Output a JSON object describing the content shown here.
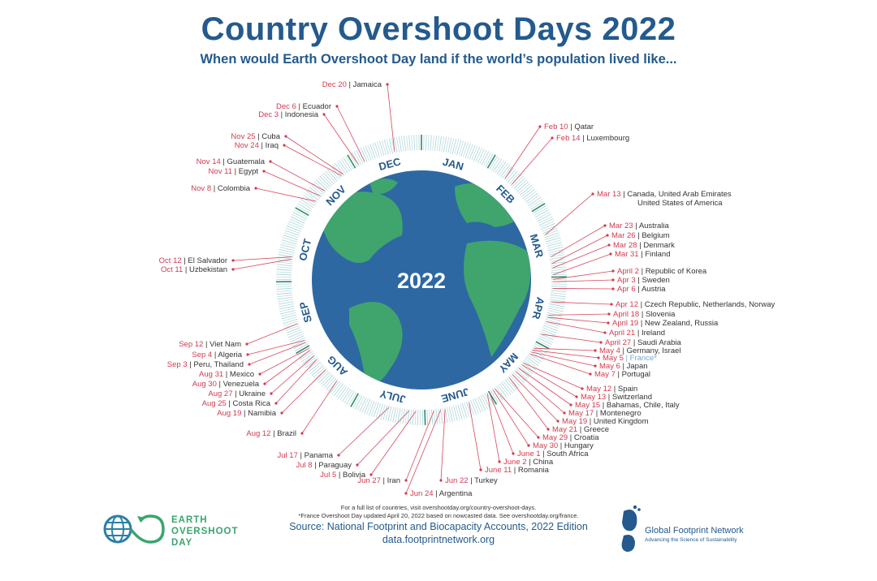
{
  "header": {
    "title": "Country Overshoot Days 2022",
    "subtitle": "When would Earth Overshoot Day land if the world’s population lived like..."
  },
  "chart_data": {
    "type": "radial-timeline",
    "title": "Country Overshoot Days 2022",
    "center_label": "2022",
    "months": [
      "JAN",
      "FEB",
      "MAR",
      "APR",
      "MAY",
      "JUNE",
      "JULY",
      "AUG",
      "SEP",
      "OCT",
      "NOV",
      "DEC"
    ],
    "separator": "|",
    "entries": [
      {
        "date": "Dec 20",
        "country": "Jamaica"
      },
      {
        "date": "Dec 6",
        "country": "Ecuador"
      },
      {
        "date": "Dec 3",
        "country": "Indonesia"
      },
      {
        "date": "Nov 25",
        "country": "Cuba"
      },
      {
        "date": "Nov 24",
        "country": "Iraq"
      },
      {
        "date": "Nov 14",
        "country": "Guatemala"
      },
      {
        "date": "Nov 11",
        "country": "Egypt"
      },
      {
        "date": "Nov 8",
        "country": "Colombia"
      },
      {
        "date": "Oct 12",
        "country": "El Salvador"
      },
      {
        "date": "Oct 11",
        "country": "Uzbekistan"
      },
      {
        "date": "Sep 12",
        "country": "Viet Nam"
      },
      {
        "date": "Sep 4",
        "country": "Algeria"
      },
      {
        "date": "Sep 3",
        "country": "Peru, Thailand"
      },
      {
        "date": "Aug 31",
        "country": "Mexico"
      },
      {
        "date": "Aug 30",
        "country": "Venezuela"
      },
      {
        "date": "Aug 27",
        "country": "Ukraine"
      },
      {
        "date": "Aug 25",
        "country": "Costa Rica"
      },
      {
        "date": "Aug 19",
        "country": "Namibia"
      },
      {
        "date": "Aug 12",
        "country": "Brazil"
      },
      {
        "date": "Jul 17",
        "country": "Panama"
      },
      {
        "date": "Jul 8",
        "country": "Paraguay"
      },
      {
        "date": "Jul 5",
        "country": "Bolivia"
      },
      {
        "date": "Jun 27",
        "country": "Iran"
      },
      {
        "date": "Jun 24",
        "country": "Argentina"
      },
      {
        "date": "Jun 22",
        "country": "Turkey"
      },
      {
        "date": "June 11",
        "country": "Romania"
      },
      {
        "date": "June 2",
        "country": "China"
      },
      {
        "date": "June 1",
        "country": "South Africa"
      },
      {
        "date": "May 30",
        "country": "Hungary"
      },
      {
        "date": "May 29",
        "country": "Croatia"
      },
      {
        "date": "May 21",
        "country": "Greece"
      },
      {
        "date": "May 19",
        "country": "United Kingdom"
      },
      {
        "date": "May 17",
        "country": "Montenegro"
      },
      {
        "date": "May 15",
        "country": "Bahamas, Chile, Italy"
      },
      {
        "date": "May 13",
        "country": "Switzerland"
      },
      {
        "date": "May 12",
        "country": "Spain"
      },
      {
        "date": "May 7",
        "country": "Portugal"
      },
      {
        "date": "May 6",
        "country": "Japan"
      },
      {
        "date": "May 5",
        "country": "France*",
        "highlight": true
      },
      {
        "date": "May 4",
        "country": "Germany, Israel"
      },
      {
        "date": "April 27",
        "country": "Saudi Arabia"
      },
      {
        "date": "April 21",
        "country": "Ireland"
      },
      {
        "date": "April 19",
        "country": "New Zealand, Russia"
      },
      {
        "date": "April 18",
        "country": "Slovenia"
      },
      {
        "date": "Apr 12",
        "country": "Czech Republic, Netherlands, Norway"
      },
      {
        "date": "Apr 6",
        "country": "Austria"
      },
      {
        "date": "Apr 3",
        "country": "Sweden"
      },
      {
        "date": "April 2",
        "country": "Republic of Korea"
      },
      {
        "date": "Mar 31",
        "country": "Finland"
      },
      {
        "date": "Mar 28",
        "country": "Denmark"
      },
      {
        "date": "Mar 26",
        "country": "Belgium"
      },
      {
        "date": "Mar 23",
        "country": "Australia"
      },
      {
        "date": "Mar 13",
        "country": "Canada, United Arab Emirates",
        "country_line2": "United States of America"
      },
      {
        "date": "Feb 14",
        "country": "Luxembourg"
      },
      {
        "date": "Feb 10",
        "country": "Qatar"
      }
    ],
    "colors": {
      "date": "#d23a4e",
      "country": "#333333",
      "highlight": "#6fa8d6",
      "title": "#245a8d",
      "ocean": "#2d68a3",
      "land": "#3fa56d",
      "ring_light": "#b9dfd0",
      "ring_blue": "#a9cfe6"
    }
  },
  "footer": {
    "note1": "For a full list of countries, visit overshootday.org/country-overshoot-days.",
    "note2": "*France Overshoot Day updated April 20, 2022 based on nowcasted data. See overshootday.org/france.",
    "source": "Source: National Footprint and Biocapacity Accounts, 2022 Edition",
    "source_url": "data.footprintnetwork.org"
  },
  "logos": {
    "eod": {
      "line1": "EARTH",
      "line2": "OVERSHOOT",
      "line3": "DAY"
    },
    "gfn": {
      "name": "Global Footprint Network",
      "tagline": "Advancing the Science of Sustainability"
    }
  }
}
